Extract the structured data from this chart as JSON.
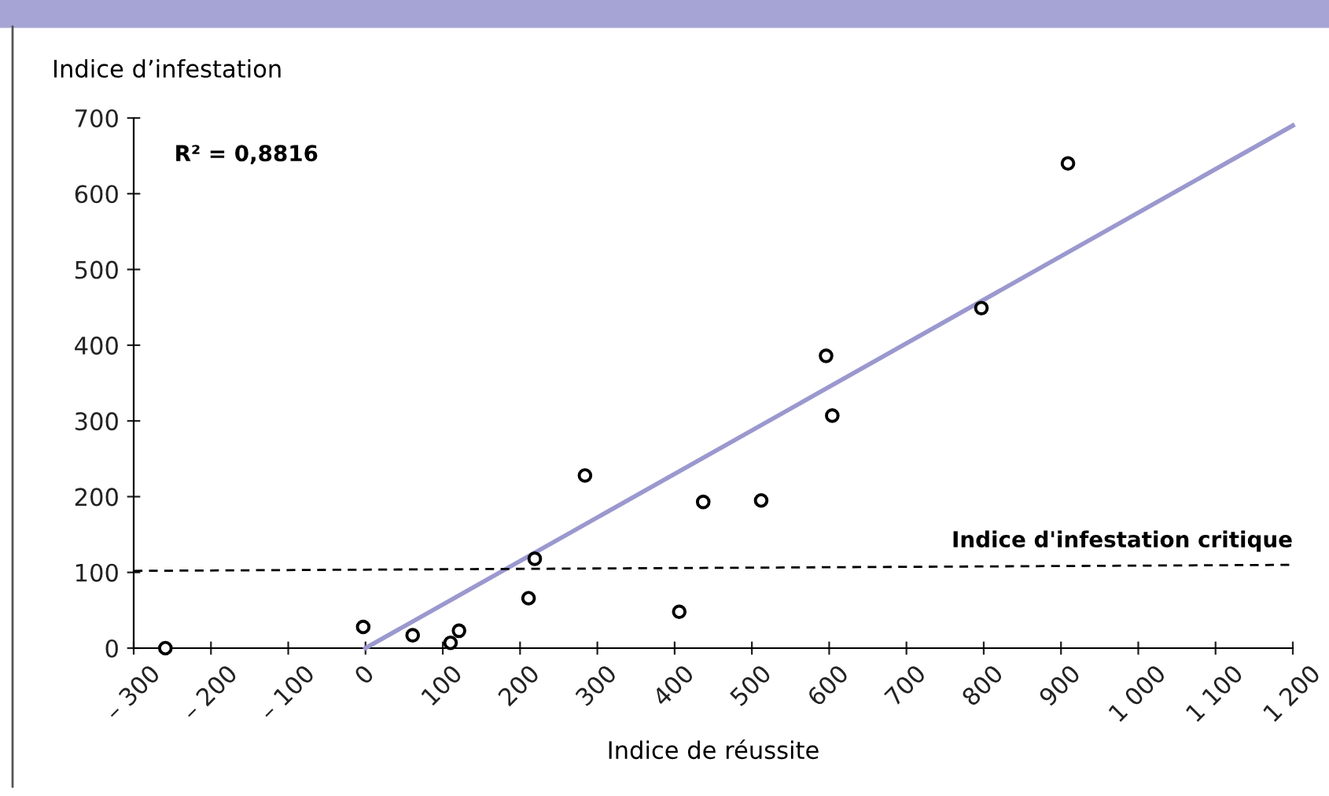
{
  "chart_data": {
    "type": "scatter",
    "xlabel": "Indice de réussite",
    "ylabel": "Indice d’infestation",
    "xlim": [
      -300,
      1200
    ],
    "ylim": [
      0,
      700
    ],
    "xticks": [
      {
        "value": -300,
        "label": "– 300"
      },
      {
        "value": -200,
        "label": "– 200"
      },
      {
        "value": -100,
        "label": "– 100"
      },
      0,
      100,
      200,
      300,
      400,
      500,
      600,
      700,
      800,
      900,
      {
        "value": 1000,
        "label": "1 000"
      },
      {
        "value": 1100,
        "label": "1 100"
      },
      {
        "value": 1200,
        "label": "1 200"
      }
    ],
    "yticks": [
      0,
      100,
      200,
      300,
      400,
      500,
      600,
      700
    ],
    "grid": false,
    "legend": false,
    "annotations": [
      "R² = 0,8816"
    ],
    "series": [
      {
        "marker": "circle",
        "color": "#000000",
        "x": [
          -259,
          -3,
          61,
          110,
          121,
          211,
          219,
          284,
          406,
          437,
          512,
          596,
          604,
          797,
          909
        ],
        "values": [
          0,
          28,
          17,
          7,
          23,
          66,
          118,
          228,
          48,
          193,
          195,
          386,
          307,
          449,
          640
        ]
      },
      {
        "type": "line",
        "color": "#9b98cf",
        "x": [
          0,
          1200
        ],
        "values": [
          0,
          690
        ],
        "line_style": "solid",
        "marker": "none"
      },
      {
        "type": "line",
        "name": "Indice d'infestation critique",
        "color": "#000000",
        "x": [
          -300,
          1200
        ],
        "values": [
          102,
          110
        ],
        "line_style": "dashed",
        "marker": "none"
      }
    ]
  }
}
